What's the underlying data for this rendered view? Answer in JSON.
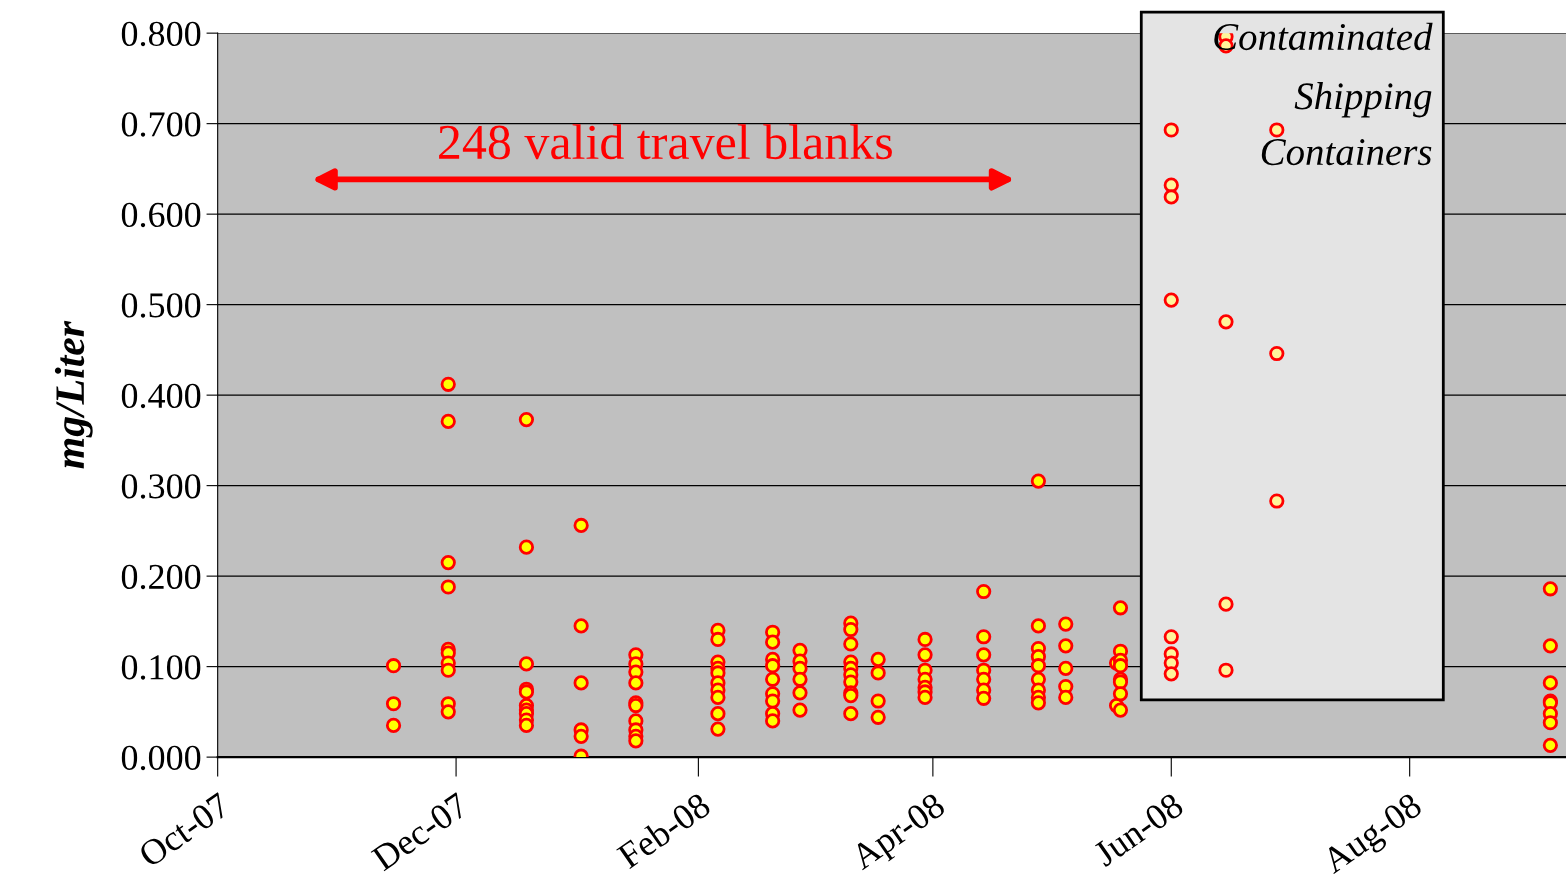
{
  "chart_data": {
    "type": "scatter",
    "ylabel": "mg/Liter",
    "annotations": [
      "248 valid travel blanks",
      "Contaminated",
      "Shipping",
      "Containers"
    ],
    "xlim": [
      "2007-10-01",
      "2008-09-10"
    ],
    "xticks": [
      {
        "value": "2007-10-01",
        "label": "Oct-07"
      },
      {
        "value": "2007-12-01",
        "label": "Dec-07"
      },
      {
        "value": "2008-02-01",
        "label": "Feb-08"
      },
      {
        "value": "2008-04-01",
        "label": "Apr-08"
      },
      {
        "value": "2008-06-01",
        "label": "Jun-08"
      },
      {
        "value": "2008-08-01",
        "label": "Aug-08"
      }
    ],
    "ylim": [
      0,
      0.8
    ],
    "yticks": [
      {
        "value": 0,
        "label": "0.000"
      },
      {
        "value": 0.1,
        "label": "0.100"
      },
      {
        "value": 0.2,
        "label": "0.200"
      },
      {
        "value": 0.3,
        "label": "0.300"
      },
      {
        "value": 0.4,
        "label": "0.400"
      },
      {
        "value": 0.5,
        "label": "0.500"
      },
      {
        "value": 0.6,
        "label": "0.600"
      },
      {
        "value": 0.7,
        "label": "0.700"
      },
      {
        "value": 0.8,
        "label": "0.800"
      }
    ],
    "grid": "y",
    "marker": "circle",
    "series": [
      {
        "color": "#ffff00",
        "x": [
          "2007-11-15",
          "2007-11-15",
          "2007-11-15",
          "2007-11-29",
          "2007-11-29",
          "2007-11-29",
          "2007-11-29",
          "2007-11-29",
          "2007-11-29",
          "2007-11-29",
          "2007-11-29",
          "2007-11-29",
          "2007-11-29",
          "2007-12-19",
          "2007-12-19",
          "2007-12-19",
          "2007-12-19",
          "2007-12-19",
          "2007-12-19",
          "2007-12-19",
          "2007-12-19",
          "2007-12-19",
          "2007-12-19",
          "2008-01-02",
          "2008-01-02",
          "2008-01-02",
          "2008-01-02",
          "2008-01-02",
          "2008-01-02",
          "2008-01-16",
          "2008-01-16",
          "2008-01-16",
          "2008-01-16",
          "2008-01-16",
          "2008-01-16",
          "2008-01-16",
          "2008-01-16",
          "2008-01-16",
          "2008-01-16",
          "2008-02-06",
          "2008-02-06",
          "2008-02-06",
          "2008-02-06",
          "2008-02-06",
          "2008-02-06",
          "2008-02-06",
          "2008-02-06",
          "2008-02-06",
          "2008-02-06",
          "2008-02-20",
          "2008-02-20",
          "2008-02-20",
          "2008-02-20",
          "2008-02-20",
          "2008-02-20",
          "2008-02-20",
          "2008-02-20",
          "2008-02-20",
          "2008-02-27",
          "2008-02-27",
          "2008-02-27",
          "2008-02-27",
          "2008-02-27",
          "2008-02-27",
          "2008-03-11",
          "2008-03-11",
          "2008-03-11",
          "2008-03-11",
          "2008-03-11",
          "2008-03-11",
          "2008-03-11",
          "2008-03-11",
          "2008-03-11",
          "2008-03-11",
          "2008-03-18",
          "2008-03-18",
          "2008-03-18",
          "2008-03-18",
          "2008-03-30",
          "2008-03-30",
          "2008-03-30",
          "2008-03-30",
          "2008-03-30",
          "2008-03-30",
          "2008-03-30",
          "2008-04-14",
          "2008-04-14",
          "2008-04-14",
          "2008-04-14",
          "2008-04-14",
          "2008-04-14",
          "2008-04-14",
          "2008-04-28",
          "2008-04-28",
          "2008-04-28",
          "2008-04-28",
          "2008-04-28",
          "2008-04-28",
          "2008-04-28",
          "2008-04-28",
          "2008-04-28",
          "2008-05-05",
          "2008-05-05",
          "2008-05-05",
          "2008-05-05",
          "2008-05-05",
          "2008-05-18",
          "2008-05-18",
          "2008-05-19",
          "2008-05-19",
          "2008-05-19",
          "2008-05-19",
          "2008-05-19",
          "2008-05-19",
          "2008-05-19",
          "2008-05-19",
          "2008-09-06",
          "2008-09-06",
          "2008-09-06",
          "2008-09-06",
          "2008-09-06",
          "2008-09-06",
          "2008-09-06",
          "2008-09-06"
        ],
        "values": [
          0.101,
          0.059,
          0.035,
          0.412,
          0.371,
          0.215,
          0.188,
          0.119,
          0.115,
          0.104,
          0.096,
          0.059,
          0.05,
          0.373,
          0.232,
          0.103,
          0.075,
          0.072,
          0.057,
          0.052,
          0.048,
          0.041,
          0.035,
          0.256,
          0.145,
          0.082,
          0.03,
          0.023,
          0.001,
          0.113,
          0.103,
          0.094,
          0.082,
          0.06,
          0.057,
          0.04,
          0.03,
          0.023,
          0.018,
          0.14,
          0.13,
          0.105,
          0.098,
          0.093,
          0.082,
          0.074,
          0.066,
          0.048,
          0.031,
          0.138,
          0.127,
          0.108,
          0.101,
          0.086,
          0.07,
          0.062,
          0.048,
          0.04,
          0.118,
          0.106,
          0.098,
          0.086,
          0.071,
          0.052,
          0.148,
          0.141,
          0.125,
          0.105,
          0.098,
          0.091,
          0.083,
          0.071,
          0.068,
          0.048,
          0.108,
          0.093,
          0.062,
          0.044,
          0.13,
          0.113,
          0.096,
          0.086,
          0.077,
          0.072,
          0.066,
          0.183,
          0.133,
          0.113,
          0.096,
          0.086,
          0.074,
          0.065,
          0.305,
          0.145,
          0.12,
          0.111,
          0.101,
          0.086,
          0.074,
          0.066,
          0.06,
          0.147,
          0.123,
          0.098,
          0.078,
          0.066,
          0.104,
          0.057,
          0.165,
          0.117,
          0.107,
          0.101,
          0.086,
          0.083,
          0.07,
          0.052,
          0.186,
          0.123,
          0.082,
          0.062,
          0.06,
          0.048,
          0.038,
          0.013
        ]
      },
      {
        "color": "#fff59a",
        "x": [
          "2008-06-01",
          "2008-06-01",
          "2008-06-01",
          "2008-06-01",
          "2008-06-01",
          "2008-06-01",
          "2008-06-01",
          "2008-06-01",
          "2008-06-15",
          "2008-06-15",
          "2008-06-15",
          "2008-06-15",
          "2008-06-15",
          "2008-06-28",
          "2008-06-28",
          "2008-06-28"
        ],
        "values": [
          0.693,
          0.632,
          0.619,
          0.505,
          0.133,
          0.114,
          0.104,
          0.092,
          0.796,
          0.786,
          0.481,
          0.169,
          0.096,
          0.693,
          0.446,
          0.283
        ]
      }
    ]
  }
}
